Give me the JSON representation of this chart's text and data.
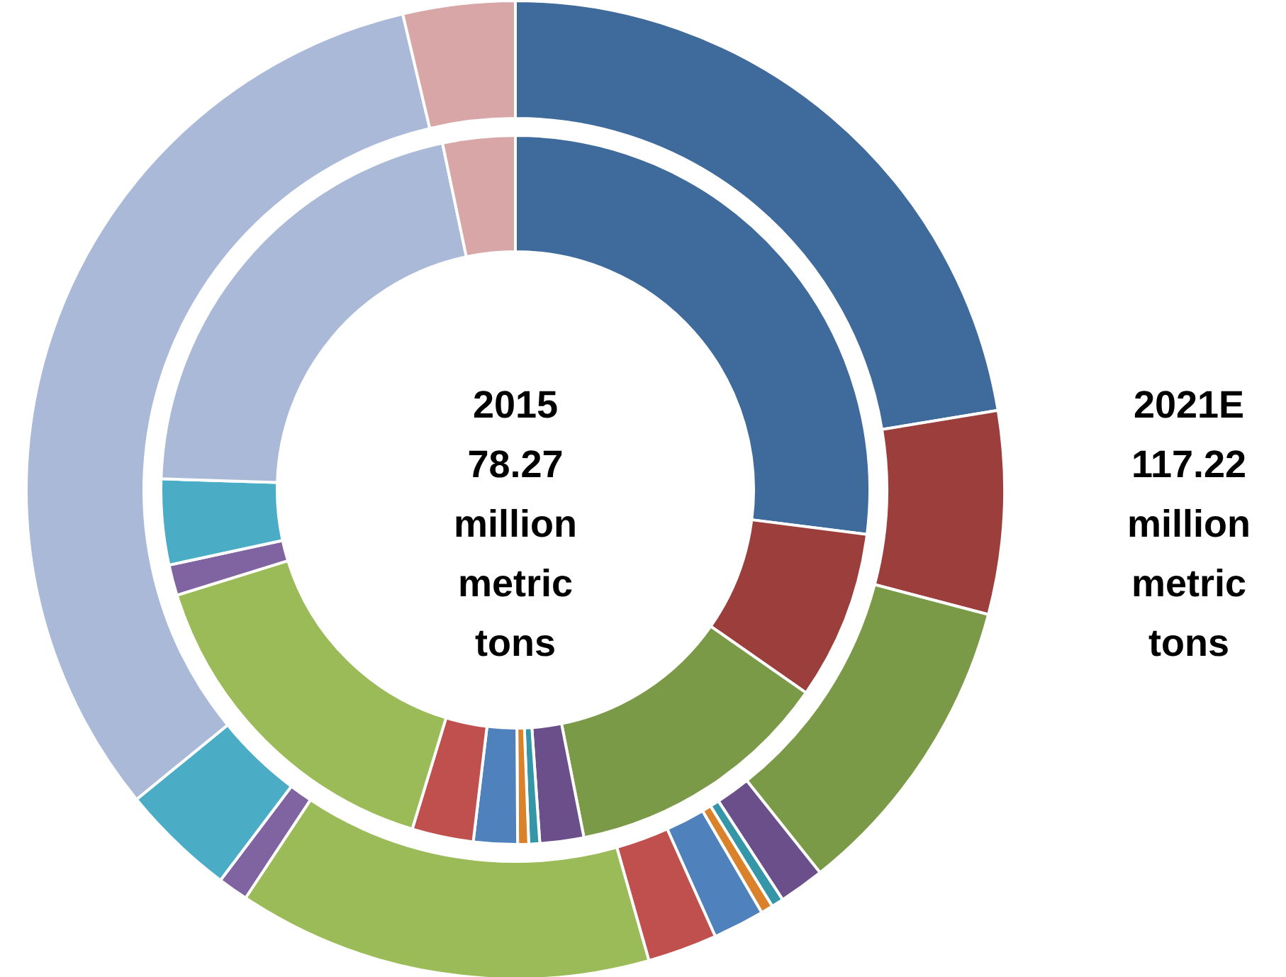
{
  "chart_data": {
    "type": "donut",
    "categories": [
      null,
      null,
      null,
      null,
      null,
      null,
      null,
      null,
      null,
      null,
      null,
      null,
      null
    ],
    "colors": [
      "#3f6a9c",
      "#9c3e3c",
      "#7b9a48",
      "#6a4f8a",
      "#3596a8",
      "#d9822b",
      "#4f81bd",
      "#c0504d",
      "#9bbb59",
      "#8064a2",
      "#4bacc6",
      "#a9b9d7",
      "#d8a6a6"
    ],
    "series": [
      {
        "values": [
          27,
          7.7,
          12.2,
          2,
          0.5,
          0.5,
          2,
          2.8,
          15.5,
          1.4,
          3.9,
          21.2,
          3.3
        ]
      },
      {
        "values": [
          22.4,
          6.7,
          10.2,
          1.5,
          0.4,
          0.4,
          1.7,
          2.3,
          13.7,
          1,
          3.8,
          32.2,
          3.7
        ]
      }
    ],
    "annotations": [
      "2015\n78.27\nmillion\nmetric\ntons",
      "2021E\n117.22\nmillion\nmetric\ntons"
    ]
  }
}
